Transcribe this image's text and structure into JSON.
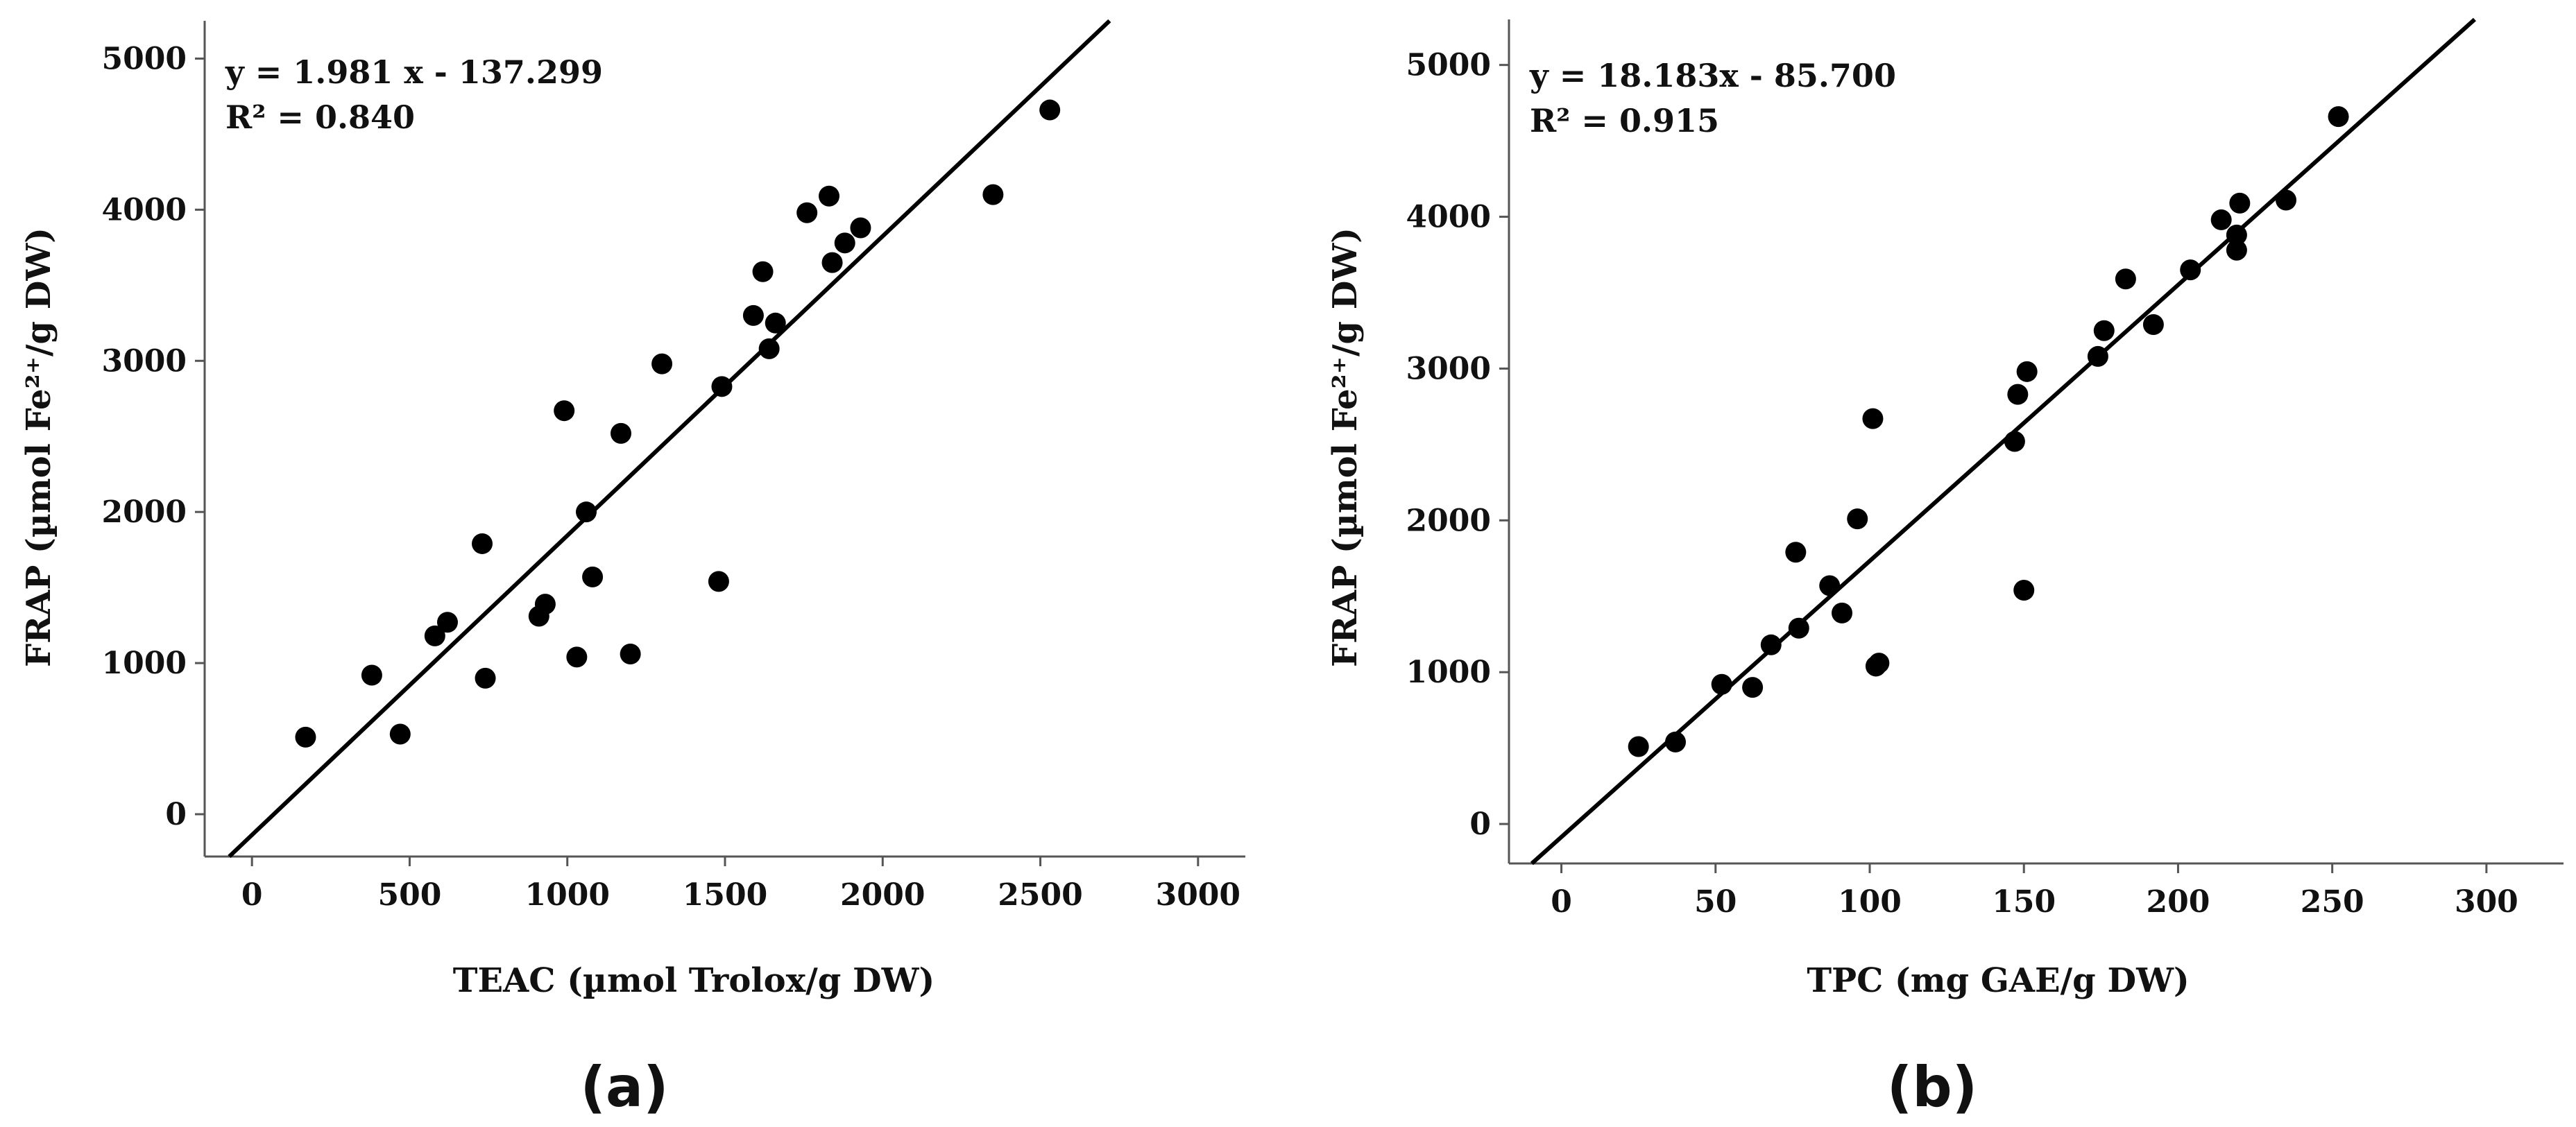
{
  "chart_data": [
    {
      "type": "scatter",
      "panel_label": "(a)",
      "xlabel": "TEAC (µmol Trolox/g DW)",
      "ylabel": "FRAP (µmol Fe²⁺/g DW)",
      "xlim": [
        -150,
        3150
      ],
      "ylim": [
        -280,
        5250
      ],
      "xticks": [
        0,
        500,
        1000,
        1500,
        2000,
        2500,
        3000
      ],
      "yticks": [
        0,
        1000,
        2000,
        3000,
        4000,
        5000
      ],
      "regression": {
        "equation": "y = 1.981 x - 137.299",
        "r2": "R² = 0.840",
        "slope": 1.981,
        "intercept": -137.299
      },
      "points": [
        {
          "x": 170,
          "y": 510
        },
        {
          "x": 380,
          "y": 920
        },
        {
          "x": 470,
          "y": 530
        },
        {
          "x": 580,
          "y": 1180
        },
        {
          "x": 620,
          "y": 1270
        },
        {
          "x": 730,
          "y": 1790
        },
        {
          "x": 740,
          "y": 900
        },
        {
          "x": 910,
          "y": 1310
        },
        {
          "x": 930,
          "y": 1390
        },
        {
          "x": 990,
          "y": 2670
        },
        {
          "x": 1030,
          "y": 1040
        },
        {
          "x": 1060,
          "y": 2000
        },
        {
          "x": 1080,
          "y": 1570
        },
        {
          "x": 1170,
          "y": 2520
        },
        {
          "x": 1200,
          "y": 1060
        },
        {
          "x": 1300,
          "y": 2980
        },
        {
          "x": 1480,
          "y": 1540
        },
        {
          "x": 1490,
          "y": 2830
        },
        {
          "x": 1590,
          "y": 3300
        },
        {
          "x": 1620,
          "y": 3590
        },
        {
          "x": 1640,
          "y": 3080
        },
        {
          "x": 1660,
          "y": 3250
        },
        {
          "x": 1760,
          "y": 3980
        },
        {
          "x": 1830,
          "y": 4090
        },
        {
          "x": 1840,
          "y": 3650
        },
        {
          "x": 1880,
          "y": 3780
        },
        {
          "x": 1930,
          "y": 3880
        },
        {
          "x": 2350,
          "y": 4100
        },
        {
          "x": 2530,
          "y": 4660
        }
      ]
    },
    {
      "type": "scatter",
      "panel_label": "(b)",
      "xlabel": "TPC  (mg GAE/g DW)",
      "ylabel": "FRAP (µmol Fe²⁺/g DW)",
      "xlim": [
        -17,
        325
      ],
      "ylim": [
        -260,
        5300
      ],
      "xticks": [
        0,
        50,
        100,
        150,
        200,
        250,
        300
      ],
      "yticks": [
        0,
        1000,
        2000,
        3000,
        4000,
        5000
      ],
      "regression": {
        "equation": "y = 18.183x - 85.700",
        "r2": "R² = 0.915",
        "slope": 18.183,
        "intercept": -85.7
      },
      "points": [
        {
          "x": 25,
          "y": 510
        },
        {
          "x": 37,
          "y": 540
        },
        {
          "x": 52,
          "y": 920
        },
        {
          "x": 62,
          "y": 900
        },
        {
          "x": 68,
          "y": 1180
        },
        {
          "x": 76,
          "y": 1790
        },
        {
          "x": 77,
          "y": 1290
        },
        {
          "x": 87,
          "y": 1570
        },
        {
          "x": 91,
          "y": 1390
        },
        {
          "x": 96,
          "y": 2010
        },
        {
          "x": 101,
          "y": 2670
        },
        {
          "x": 102,
          "y": 1040
        },
        {
          "x": 103,
          "y": 1060
        },
        {
          "x": 147,
          "y": 2520
        },
        {
          "x": 148,
          "y": 2830
        },
        {
          "x": 150,
          "y": 1540
        },
        {
          "x": 151,
          "y": 2980
        },
        {
          "x": 174,
          "y": 3080
        },
        {
          "x": 176,
          "y": 3250
        },
        {
          "x": 183,
          "y": 3590
        },
        {
          "x": 192,
          "y": 3290
        },
        {
          "x": 204,
          "y": 3650
        },
        {
          "x": 214,
          "y": 3980
        },
        {
          "x": 219,
          "y": 3780
        },
        {
          "x": 219,
          "y": 3880
        },
        {
          "x": 220,
          "y": 4090
        },
        {
          "x": 235,
          "y": 4110
        },
        {
          "x": 252,
          "y": 4660
        }
      ]
    }
  ]
}
